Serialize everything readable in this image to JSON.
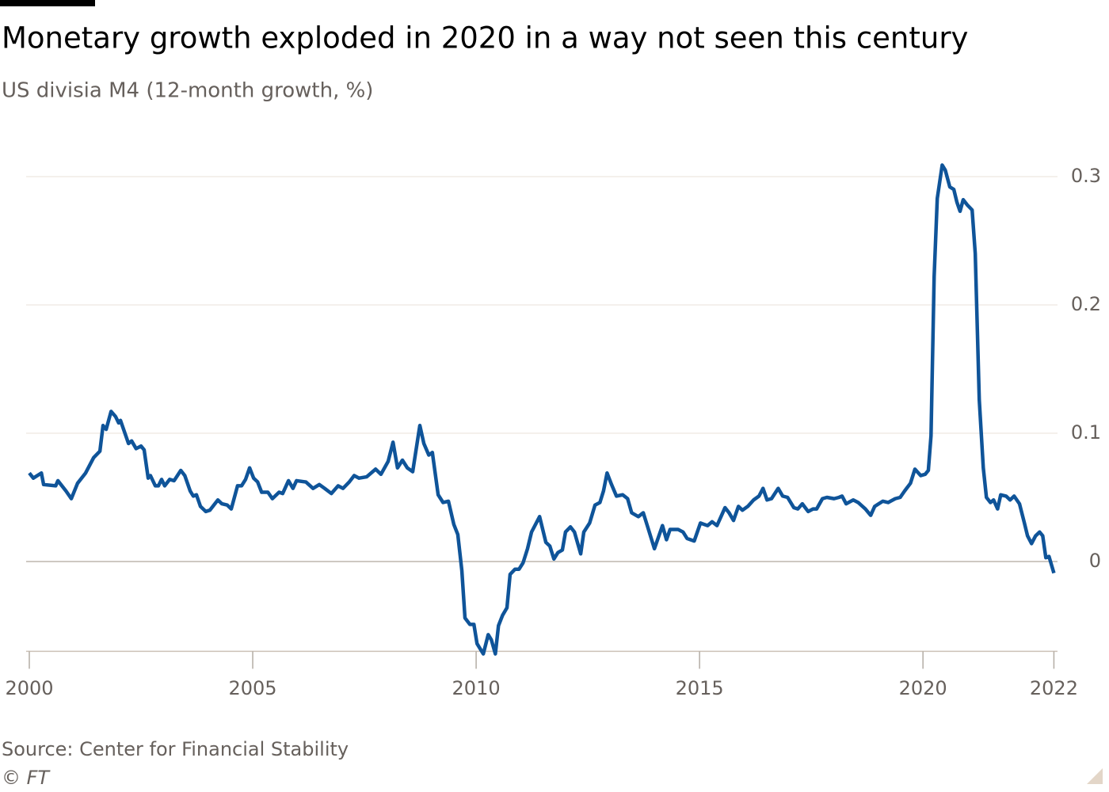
{
  "chart_data": {
    "type": "line",
    "title": "Monetary growth exploded in 2020 in a way not seen this century",
    "subtitle": "US divisia M4 (12-month growth, %)",
    "source": "Source: Center for Financial Stability",
    "copyright": "© FT",
    "xlim": [
      2000,
      2022.94
    ],
    "xticks": [
      2000,
      2005,
      2010,
      2015,
      2020,
      {
        "value": 2022.93,
        "label": "2022"
      }
    ],
    "ylim": [
      -0.07,
      0.32
    ],
    "yticks": [
      0,
      0.1,
      0.2,
      0.3
    ],
    "grid": true,
    "x": [
      2000.0,
      2000.09,
      2000.27,
      2000.32,
      2000.59,
      2000.64,
      2000.82,
      2000.94,
      2001.08,
      2001.26,
      2001.44,
      2001.58,
      2001.65,
      2001.72,
      2001.83,
      2001.93,
      2002.0,
      2002.04,
      2002.22,
      2002.29,
      2002.39,
      2002.5,
      2002.57,
      2002.66,
      2002.71,
      2002.82,
      2002.89,
      2002.96,
      2003.03,
      2003.14,
      2003.24,
      2003.39,
      2003.48,
      2003.6,
      2003.67,
      2003.74,
      2003.83,
      2003.95,
      2004.04,
      2004.22,
      2004.31,
      2004.43,
      2004.52,
      2004.66,
      2004.75,
      2004.84,
      2004.93,
      2005.02,
      2005.11,
      2005.2,
      2005.34,
      2005.44,
      2005.59,
      2005.67,
      2005.8,
      2005.9,
      2005.98,
      2006.19,
      2006.35,
      2006.49,
      2006.61,
      2006.76,
      2006.91,
      2007.02,
      2007.16,
      2007.27,
      2007.38,
      2007.55,
      2007.75,
      2007.87,
      2008.03,
      2008.14,
      2008.24,
      2008.35,
      2008.46,
      2008.58,
      2008.74,
      2008.83,
      2008.94,
      2009.02,
      2009.15,
      2009.26,
      2009.38,
      2009.5,
      2009.59,
      2009.68,
      2009.75,
      2009.86,
      2009.95,
      2010.02,
      2010.16,
      2010.27,
      2010.34,
      2010.43,
      2010.5,
      2010.59,
      2010.69,
      2010.76,
      2010.87,
      2010.96,
      2011.05,
      2011.15,
      2011.24,
      2011.42,
      2011.56,
      2011.65,
      2011.74,
      2011.83,
      2011.93,
      2012.0,
      2012.11,
      2012.2,
      2012.34,
      2012.41,
      2012.54,
      2012.66,
      2012.77,
      2012.85,
      2012.93,
      2013.03,
      2013.14,
      2013.28,
      2013.39,
      2013.48,
      2013.63,
      2013.74,
      2013.83,
      2013.99,
      2014.08,
      2014.17,
      2014.26,
      2014.34,
      2014.52,
      2014.63,
      2014.72,
      2014.88,
      2015.02,
      2015.18,
      2015.28,
      2015.39,
      2015.48,
      2015.57,
      2015.66,
      2015.76,
      2015.87,
      2015.96,
      2016.08,
      2016.21,
      2016.33,
      2016.42,
      2016.51,
      2016.61,
      2016.76,
      2016.86,
      2016.97,
      2017.11,
      2017.2,
      2017.3,
      2017.43,
      2017.54,
      2017.62,
      2017.75,
      2017.85,
      2018.01,
      2018.12,
      2018.19,
      2018.28,
      2018.44,
      2018.55,
      2018.71,
      2018.83,
      2018.92,
      2019.1,
      2019.22,
      2019.38,
      2019.49,
      2019.59,
      2019.72,
      2019.82,
      2019.95,
      2020.05,
      2020.12,
      2020.18,
      2020.25,
      2020.32,
      2020.43,
      2020.5,
      2020.6,
      2020.69,
      2020.76,
      2020.83,
      2020.9,
      2020.99,
      2021.1,
      2021.17,
      2021.26,
      2021.35,
      2021.42,
      2021.51,
      2021.58,
      2021.67,
      2021.74,
      2021.86,
      2021.95,
      2022.04,
      2022.16,
      2022.27,
      2022.34,
      2022.43,
      2022.52,
      2022.61,
      2022.68,
      2022.75,
      2022.82,
      2022.93
    ],
    "series": [
      {
        "name": "US divisia M4",
        "color": "#0f5499",
        "values": [
          0.069,
          0.065,
          0.069,
          0.06,
          0.059,
          0.063,
          0.055,
          0.049,
          0.061,
          0.069,
          0.081,
          0.086,
          0.106,
          0.103,
          0.117,
          0.113,
          0.108,
          0.11,
          0.092,
          0.094,
          0.088,
          0.09,
          0.087,
          0.065,
          0.067,
          0.059,
          0.059,
          0.064,
          0.059,
          0.064,
          0.063,
          0.071,
          0.067,
          0.055,
          0.051,
          0.052,
          0.043,
          0.039,
          0.04,
          0.048,
          0.045,
          0.044,
          0.041,
          0.059,
          0.059,
          0.064,
          0.073,
          0.065,
          0.062,
          0.054,
          0.054,
          0.049,
          0.054,
          0.053,
          0.063,
          0.057,
          0.063,
          0.062,
          0.057,
          0.06,
          0.057,
          0.053,
          0.059,
          0.057,
          0.062,
          0.067,
          0.065,
          0.066,
          0.072,
          0.068,
          0.078,
          0.093,
          0.073,
          0.079,
          0.073,
          0.07,
          0.106,
          0.092,
          0.083,
          0.085,
          0.052,
          0.046,
          0.047,
          0.029,
          0.021,
          -0.007,
          -0.044,
          -0.049,
          -0.049,
          -0.064,
          -0.072,
          -0.057,
          -0.061,
          -0.072,
          -0.05,
          -0.042,
          -0.036,
          -0.01,
          -0.006,
          -0.006,
          -0.001,
          0.01,
          0.023,
          0.035,
          0.015,
          0.012,
          0.002,
          0.007,
          0.009,
          0.023,
          0.027,
          0.023,
          0.006,
          0.023,
          0.03,
          0.044,
          0.046,
          0.055,
          0.069,
          0.06,
          0.051,
          0.052,
          0.049,
          0.038,
          0.035,
          0.038,
          0.028,
          0.01,
          0.019,
          0.028,
          0.017,
          0.025,
          0.025,
          0.023,
          0.018,
          0.016,
          0.03,
          0.028,
          0.031,
          0.028,
          0.035,
          0.042,
          0.038,
          0.032,
          0.043,
          0.04,
          0.043,
          0.048,
          0.051,
          0.057,
          0.048,
          0.049,
          0.057,
          0.051,
          0.05,
          0.042,
          0.041,
          0.045,
          0.039,
          0.041,
          0.041,
          0.049,
          0.05,
          0.049,
          0.05,
          0.051,
          0.045,
          0.048,
          0.046,
          0.041,
          0.036,
          0.043,
          0.047,
          0.046,
          0.049,
          0.05,
          0.055,
          0.061,
          0.072,
          0.067,
          0.068,
          0.071,
          0.098,
          0.222,
          0.283,
          0.309,
          0.305,
          0.292,
          0.29,
          0.28,
          0.273,
          0.282,
          0.278,
          0.274,
          0.24,
          0.126,
          0.073,
          0.05,
          0.046,
          0.048,
          0.041,
          0.052,
          0.051,
          0.048,
          0.051,
          0.045,
          0.03,
          0.02,
          0.014,
          0.02,
          0.023,
          0.02,
          0.003,
          0.004,
          -0.009
        ]
      }
    ]
  }
}
